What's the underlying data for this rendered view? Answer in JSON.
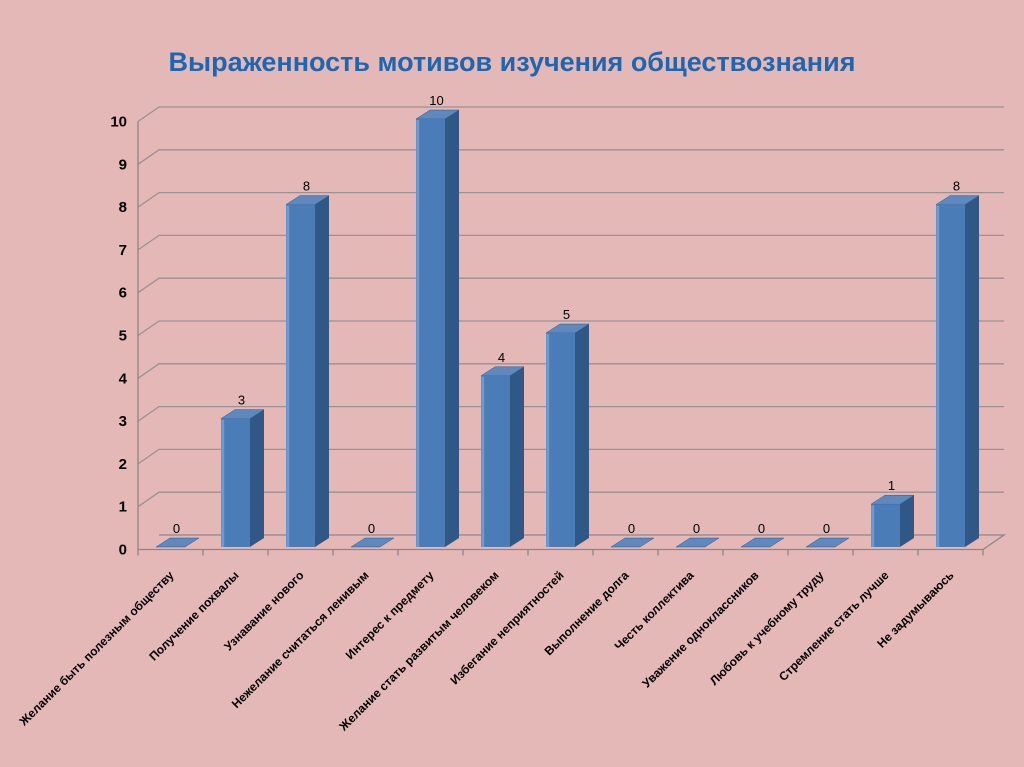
{
  "slide": {
    "background_color": "#e5b8b8"
  },
  "chart_data": {
    "type": "bar",
    "variant": "3d-column",
    "title": "Выраженность мотивов изучения обществознания",
    "title_color": "#1d66b0",
    "xlabel": "",
    "ylabel": "",
    "legend": "none",
    "grid": true,
    "ylim": [
      0,
      10
    ],
    "ytick_step": 1,
    "categories": [
      "Желание быть полезным обществу",
      "Получение похвалы",
      "Узнавание нового",
      "Нежелание считаться ленивым",
      "Интерес к предмету",
      "Желание стать развитым человеком",
      "Избегание неприятностей",
      "Выполнение долга",
      "Честь коллектива",
      "Уважение одноклассников",
      "Любовь к учебному труду",
      "Стремление стать лучше",
      "Не задумываюсь"
    ],
    "values": [
      0,
      3,
      8,
      0,
      10,
      4,
      5,
      0,
      0,
      0,
      0,
      1,
      8
    ],
    "colors": {
      "bar_front": "#4a7cb8",
      "bar_side": "#2f5886",
      "bar_top": "#5f89be",
      "bar_highlight": "#7fa3d0",
      "gridline": "#9a9192",
      "axis": "#8d8486",
      "label_text": "#000000"
    }
  }
}
